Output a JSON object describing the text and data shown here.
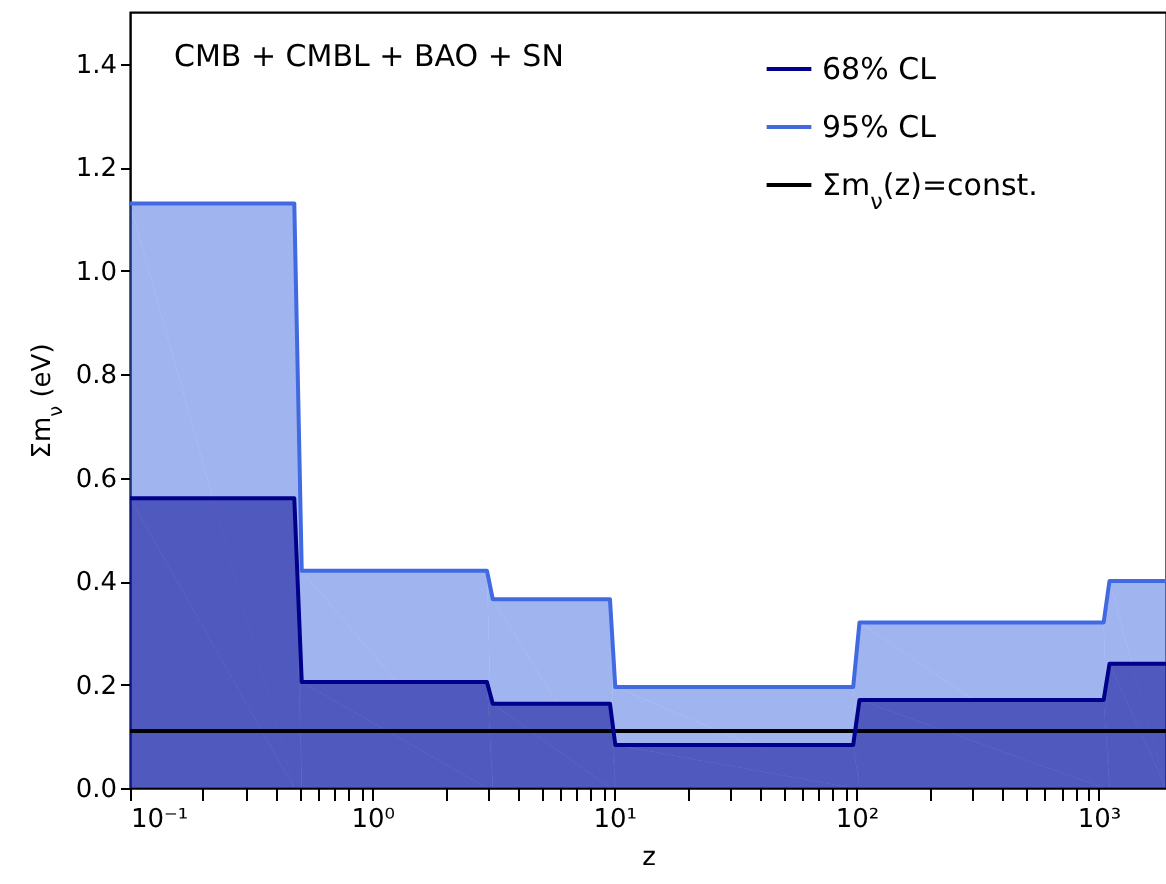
{
  "chart_data": {
    "type": "area",
    "xlabel": "z",
    "ylabel": "Σm$_{ν}$ (eV)",
    "annotations": [
      "CMB + CMBL + BAO + SN"
    ],
    "log": "x",
    "grid": false,
    "legend": "top right",
    "xlim": [
      0.1,
      1900
    ],
    "ylim": [
      0,
      1.5
    ],
    "xticks": [
      {
        "value": 0.1,
        "label": "10⁻¹"
      },
      {
        "value": 0.2,
        "label": null
      },
      {
        "value": 0.3,
        "label": null
      },
      {
        "value": 0.4,
        "label": null
      },
      {
        "value": 0.5,
        "label": null
      },
      {
        "value": 0.6,
        "label": null
      },
      {
        "value": 0.7,
        "label": null
      },
      {
        "value": 0.8,
        "label": null
      },
      {
        "value": 0.9,
        "label": null
      },
      {
        "value": 1,
        "label": "10⁰"
      },
      {
        "value": 2,
        "label": null
      },
      {
        "value": 3,
        "label": null
      },
      {
        "value": 4,
        "label": null
      },
      {
        "value": 5,
        "label": null
      },
      {
        "value": 6,
        "label": null
      },
      {
        "value": 7,
        "label": null
      },
      {
        "value": 8,
        "label": null
      },
      {
        "value": 9,
        "label": null
      },
      {
        "value": 10,
        "label": "10¹"
      },
      {
        "value": 20,
        "label": null
      },
      {
        "value": 30,
        "label": null
      },
      {
        "value": 40,
        "label": null
      },
      {
        "value": 50,
        "label": null
      },
      {
        "value": 60,
        "label": null
      },
      {
        "value": 70,
        "label": null
      },
      {
        "value": 80,
        "label": null
      },
      {
        "value": 90,
        "label": null
      },
      {
        "value": 100,
        "label": "10²"
      },
      {
        "value": 200,
        "label": null
      },
      {
        "value": 300,
        "label": null
      },
      {
        "value": 400,
        "label": null
      },
      {
        "value": 500,
        "label": null
      },
      {
        "value": 600,
        "label": null
      },
      {
        "value": 700,
        "label": null
      },
      {
        "value": 800,
        "label": null
      },
      {
        "value": 900,
        "label": null
      },
      {
        "value": 1000,
        "label": "10³"
      }
    ],
    "yticks": [
      {
        "value": 0,
        "label": "0.0"
      },
      0.2,
      0.4,
      0.6,
      0.8,
      {
        "value": 1,
        "label": "1.0"
      },
      1.2,
      1.4
    ],
    "series": [
      {
        "name": "68% CL",
        "color": "#00008b",
        "x": [
          0.1,
          0.477,
          0.512,
          2.98,
          3.15,
          9.6,
          10.1,
          97,
          103,
          1050,
          1110,
          1900
        ],
        "values": [
          0.56,
          0.56,
          0.205,
          0.205,
          0.163,
          0.163,
          0.083,
          0.083,
          0.17,
          0.17,
          0.24,
          0.24
        ]
      },
      {
        "name": "95% CL",
        "color": "#4169e1",
        "x": [
          0.1,
          0.477,
          0.512,
          2.98,
          3.15,
          9.6,
          10.1,
          97,
          103,
          1050,
          1110,
          1900
        ],
        "values": [
          1.13,
          1.13,
          0.42,
          0.42,
          0.365,
          0.365,
          0.195,
          0.195,
          0.32,
          0.32,
          0.4,
          0.4
        ]
      },
      {
        "name": "Σm$_{ν}$(z)=const.",
        "type": "line",
        "color": "#000000",
        "x": [
          0.1,
          1900
        ],
        "values": [
          0.11,
          0.11
        ]
      }
    ]
  }
}
